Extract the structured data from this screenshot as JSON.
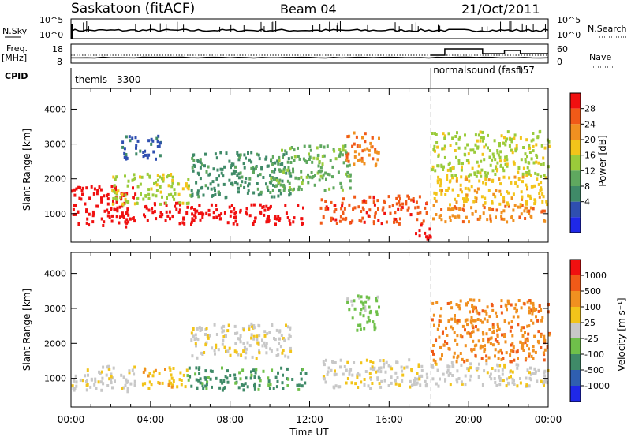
{
  "header": {
    "station": "Saskatoon (fitACF)",
    "beam": "Beam 04",
    "date": "21/Oct/2011"
  },
  "summary": {
    "nsky_label": "N.Sky",
    "nsky_ticks": [
      "10^5",
      "10^0"
    ],
    "nsearch_label": "N.Search",
    "nsearch_ticks": [
      "10^5",
      "10^0"
    ],
    "freq_label": "Freq.",
    "freq_unit": "[MHz]",
    "freq_ticks": [
      "18",
      "8"
    ],
    "nave_label": "Nave",
    "nave_ticks": [
      "60",
      "0"
    ],
    "cpid_label": "CPID",
    "cpid_segments": [
      {
        "name": "themis",
        "id": "3300",
        "start_hour": 0
      },
      {
        "name": "normalsound (fast)",
        "id": "157",
        "start_hour": 18.1
      }
    ]
  },
  "axes": {
    "ylabel": "Slant Range [km]",
    "xlabel": "Time UT",
    "y_ticks": [
      "1000",
      "2000",
      "3000",
      "4000"
    ],
    "x_ticks": [
      "00:00",
      "04:00",
      "08:00",
      "12:00",
      "16:00",
      "20:00",
      "00:00"
    ]
  },
  "chart_data": [
    {
      "type": "heatmap",
      "name": "power",
      "x_unit": "hours UT",
      "y_unit": "km",
      "xlim": [
        0,
        24
      ],
      "ylim": [
        180,
        4600
      ],
      "colorbar": {
        "label": "Power [dB]",
        "ticks": [
          "4",
          "8",
          "12",
          "16",
          "20",
          "24",
          "28"
        ],
        "colors": [
          "#1f28e8",
          "#2f4fb0",
          "#3f8a68",
          "#5fa85f",
          "#9acb3a",
          "#f2c41a",
          "#f09020",
          "#f05a18",
          "#f01010"
        ]
      },
      "regions": [
        {
          "x": [
            0,
            3.2
          ],
          "y": [
            650,
            1850
          ],
          "level": 8
        },
        {
          "x": [
            3.5,
            5.8
          ],
          "y": [
            750,
            1350
          ],
          "level": 8
        },
        {
          "x": [
            5.8,
            11.8
          ],
          "y": [
            700,
            1300
          ],
          "level": 8
        },
        {
          "x": [
            12.5,
            17.9
          ],
          "y": [
            750,
            1550
          ],
          "level": 7
        },
        {
          "x": [
            17.2,
            18.05
          ],
          "y": [
            300,
            750
          ],
          "level": 8
        },
        {
          "x": [
            18.1,
            24
          ],
          "y": [
            800,
            1300
          ],
          "level": 6
        },
        {
          "x": [
            18.1,
            24
          ],
          "y": [
            1300,
            2100
          ],
          "level": 5
        },
        {
          "x": [
            18.1,
            24
          ],
          "y": [
            2100,
            3400
          ],
          "level": 4
        },
        {
          "x": [
            2,
            6
          ],
          "y": [
            1300,
            2200
          ],
          "level": 4
        },
        {
          "x": [
            6,
            11
          ],
          "y": [
            1500,
            2800
          ],
          "level": 2
        },
        {
          "x": [
            2.5,
            4.5
          ],
          "y": [
            2600,
            3300
          ],
          "level": 1
        },
        {
          "x": [
            10,
            14
          ],
          "y": [
            1700,
            3000
          ],
          "level": 3
        },
        {
          "x": [
            13.8,
            15.5
          ],
          "y": [
            2400,
            3400
          ],
          "level": 6
        }
      ]
    },
    {
      "type": "heatmap",
      "name": "velocity",
      "x_unit": "hours UT",
      "y_unit": "km",
      "xlim": [
        0,
        24
      ],
      "ylim": [
        180,
        4600
      ],
      "colorbar": {
        "label": "Velocity [m s⁻¹]",
        "ticks": [
          "1000",
          "500",
          "100",
          "25",
          "-25",
          "-100",
          "-500",
          "-1000"
        ],
        "colors": [
          "#1f28e8",
          "#2f5fb0",
          "#3f8a68",
          "#6fc04a",
          "#c8c8c8",
          "#f2c41a",
          "#f09020",
          "#f05a18",
          "#f01010"
        ]
      },
      "regions": [
        {
          "x": [
            0,
            3.2
          ],
          "y": [
            650,
            1400
          ],
          "level": 4
        },
        {
          "x": [
            3.5,
            5.8
          ],
          "y": [
            750,
            1350
          ],
          "level": 5
        },
        {
          "x": [
            5.8,
            11.8
          ],
          "y": [
            700,
            1350
          ],
          "level": 2
        },
        {
          "x": [
            12.5,
            17.9
          ],
          "y": [
            750,
            1600
          ],
          "level": 4
        },
        {
          "x": [
            18.1,
            24
          ],
          "y": [
            800,
            1500
          ],
          "level": 4
        },
        {
          "x": [
            18.1,
            24
          ],
          "y": [
            1500,
            3300
          ],
          "level": 6
        },
        {
          "x": [
            6,
            11
          ],
          "y": [
            1600,
            2600
          ],
          "level": 4
        },
        {
          "x": [
            13.8,
            15.5
          ],
          "y": [
            2400,
            3400
          ],
          "level": 3
        }
      ]
    }
  ]
}
